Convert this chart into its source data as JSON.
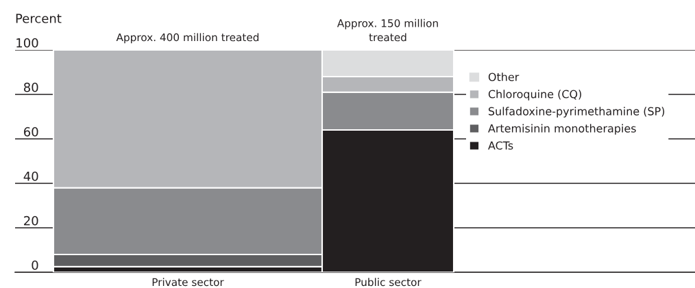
{
  "chart_data": {
    "type": "bar",
    "stacked": true,
    "ylabel": "Percent",
    "categories": [
      "Private sector",
      "Public sector"
    ],
    "series": [
      {
        "name": "ACTs",
        "color": "#231f20",
        "values": [
          2.5,
          64
        ]
      },
      {
        "name": "Artemisinin monotherapies",
        "color": "#5f5f61",
        "values": [
          5.5,
          0
        ]
      },
      {
        "name": "Sulfadoxine-pyrimethamine (SP)",
        "color": "#8a8b8e",
        "values": [
          30,
          17
        ]
      },
      {
        "name": "Chloroquine (CQ)",
        "color": "#b5b6b9",
        "values": [
          62,
          7
        ]
      },
      {
        "name": "Other",
        "color": "#dcddde",
        "values": [
          0,
          12
        ]
      }
    ],
    "annotations": [
      "Approx. 400 million treated",
      "Approx. 150 million\ntreated"
    ],
    "ylim": [
      0,
      100
    ],
    "yticks": [
      0,
      20,
      40,
      60,
      80,
      100
    ],
    "grid": "y",
    "legend": "right"
  }
}
